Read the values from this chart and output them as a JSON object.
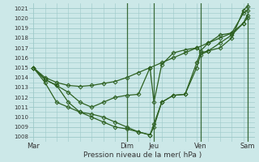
{
  "xlabel": "Pression niveau de la mer( hPa )",
  "bg_color": "#cce8e8",
  "grid_color": "#9dc8c8",
  "line_color": "#2d6020",
  "ylim": [
    1007.5,
    1021.5
  ],
  "yticks": [
    1008,
    1009,
    1010,
    1011,
    1012,
    1013,
    1014,
    1015,
    1016,
    1017,
    1018,
    1019,
    1020,
    1021
  ],
  "day_labels": [
    "Mar",
    "Dim",
    "Jeu",
    "Ven",
    "Sam"
  ],
  "day_positions": [
    0,
    48,
    62,
    86,
    110
  ],
  "xlim": [
    -2,
    114
  ],
  "series1_x": [
    0,
    6,
    12,
    18,
    24,
    30,
    36,
    42,
    48,
    54,
    60,
    66,
    72,
    78,
    84,
    90,
    96,
    102,
    108,
    110
  ],
  "series1_y": [
    1015.0,
    1014.0,
    1013.5,
    1013.2,
    1013.1,
    1013.2,
    1013.4,
    1013.6,
    1014.0,
    1014.5,
    1015.0,
    1015.5,
    1016.0,
    1016.5,
    1017.0,
    1017.5,
    1018.0,
    1018.5,
    1019.5,
    1020.3
  ],
  "series2_x": [
    0,
    6,
    12,
    18,
    24,
    30,
    36,
    42,
    48,
    54,
    60,
    62,
    66,
    72,
    78,
    84,
    86,
    90,
    96,
    102,
    108,
    110
  ],
  "series2_y": [
    1015.0,
    1013.8,
    1013.2,
    1012.5,
    1011.5,
    1011.0,
    1011.5,
    1012.0,
    1012.2,
    1012.3,
    1015.0,
    1011.5,
    1015.3,
    1016.5,
    1016.8,
    1017.0,
    1016.7,
    1017.5,
    1018.3,
    1018.5,
    1020.5,
    1020.8
  ],
  "series3_x": [
    0,
    6,
    12,
    18,
    24,
    30,
    36,
    42,
    48,
    54,
    60,
    62,
    66,
    72,
    78,
    84,
    86,
    90,
    96,
    102,
    108,
    110
  ],
  "series3_y": [
    1015.0,
    1013.5,
    1011.5,
    1011.0,
    1010.5,
    1010.3,
    1010.0,
    1009.5,
    1009.0,
    1008.5,
    1008.2,
    1009.3,
    1011.5,
    1012.2,
    1012.3,
    1015.5,
    1016.5,
    1016.7,
    1017.5,
    1018.3,
    1019.5,
    1020.0
  ],
  "series4_x": [
    0,
    6,
    12,
    18,
    24,
    30,
    36,
    42,
    48,
    54,
    60,
    62,
    66,
    72,
    78,
    84,
    86,
    90,
    96,
    102,
    108,
    110
  ],
  "series4_y": [
    1015.0,
    1013.8,
    1013.2,
    1011.5,
    1010.5,
    1010.0,
    1009.5,
    1009.0,
    1008.8,
    1008.5,
    1008.2,
    1009.0,
    1011.5,
    1012.2,
    1012.3,
    1015.0,
    1016.3,
    1016.7,
    1017.0,
    1018.0,
    1020.8,
    1021.2
  ]
}
